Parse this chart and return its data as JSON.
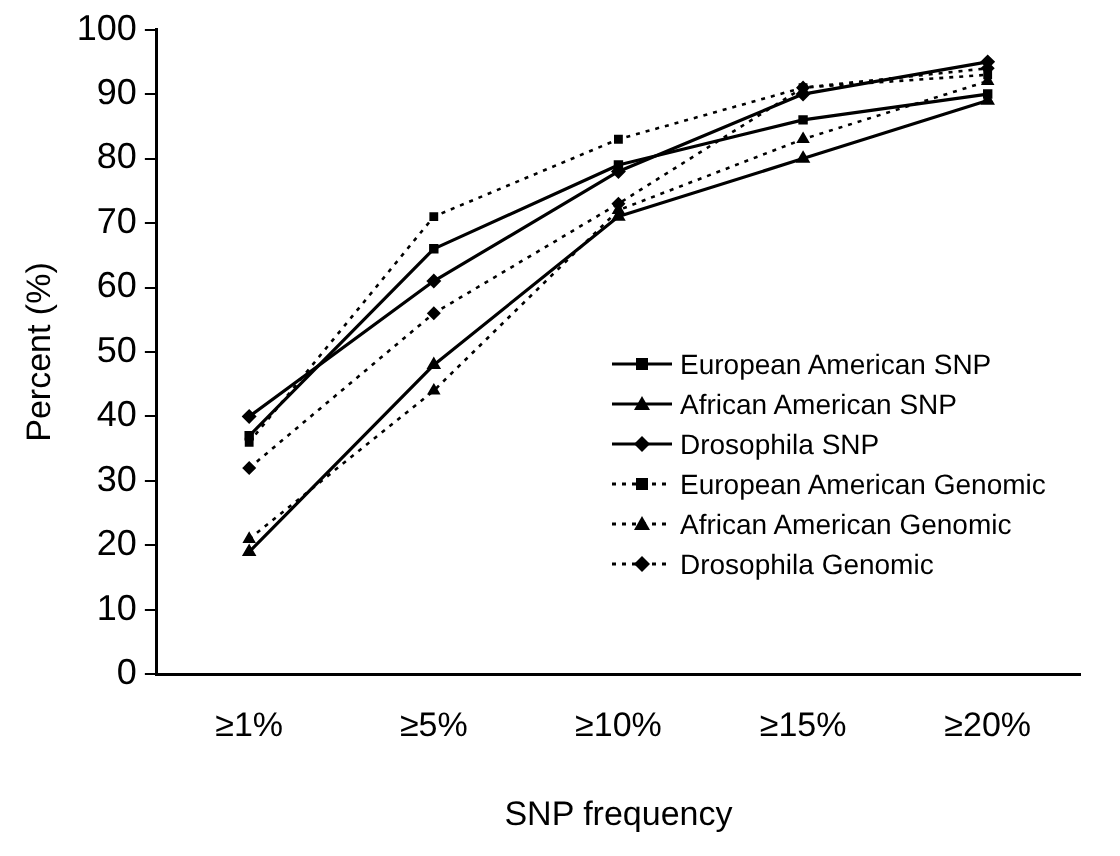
{
  "chart_data": {
    "type": "line",
    "xlabel": "SNP frequency",
    "ylabel": "Percent (%)",
    "categories": [
      "≥1%",
      "≥5%",
      "≥10%",
      "≥15%",
      "≥20%"
    ],
    "ylim": [
      0,
      100
    ],
    "yticks": [
      0,
      10,
      20,
      30,
      40,
      50,
      60,
      70,
      80,
      90,
      100
    ],
    "grid": false,
    "legend": "right",
    "series": [
      {
        "name": "European American SNP",
        "color": "#000000",
        "marker": "square",
        "line_style": "solid",
        "values": [
          37,
          66,
          79,
          86,
          90
        ]
      },
      {
        "name": "African American SNP",
        "color": "#000000",
        "marker": "triangle",
        "line_style": "solid",
        "values": [
          19,
          48,
          71,
          80,
          89
        ]
      },
      {
        "name": "Drosophila SNP",
        "color": "#000000",
        "marker": "diamond",
        "line_style": "solid",
        "values": [
          40,
          61,
          78,
          90,
          95
        ]
      },
      {
        "name": "European American Genomic",
        "color": "#000000",
        "marker": "square",
        "line_style": "dotted",
        "values": [
          36,
          71,
          83,
          91,
          93
        ]
      },
      {
        "name": "African American Genomic",
        "color": "#000000",
        "marker": "triangle",
        "line_style": "dotted",
        "values": [
          21,
          44,
          72,
          83,
          92
        ]
      },
      {
        "name": "Drosophila Genomic",
        "color": "#000000",
        "marker": "diamond",
        "line_style": "dotted",
        "values": [
          32,
          56,
          73,
          91,
          94
        ]
      }
    ]
  }
}
